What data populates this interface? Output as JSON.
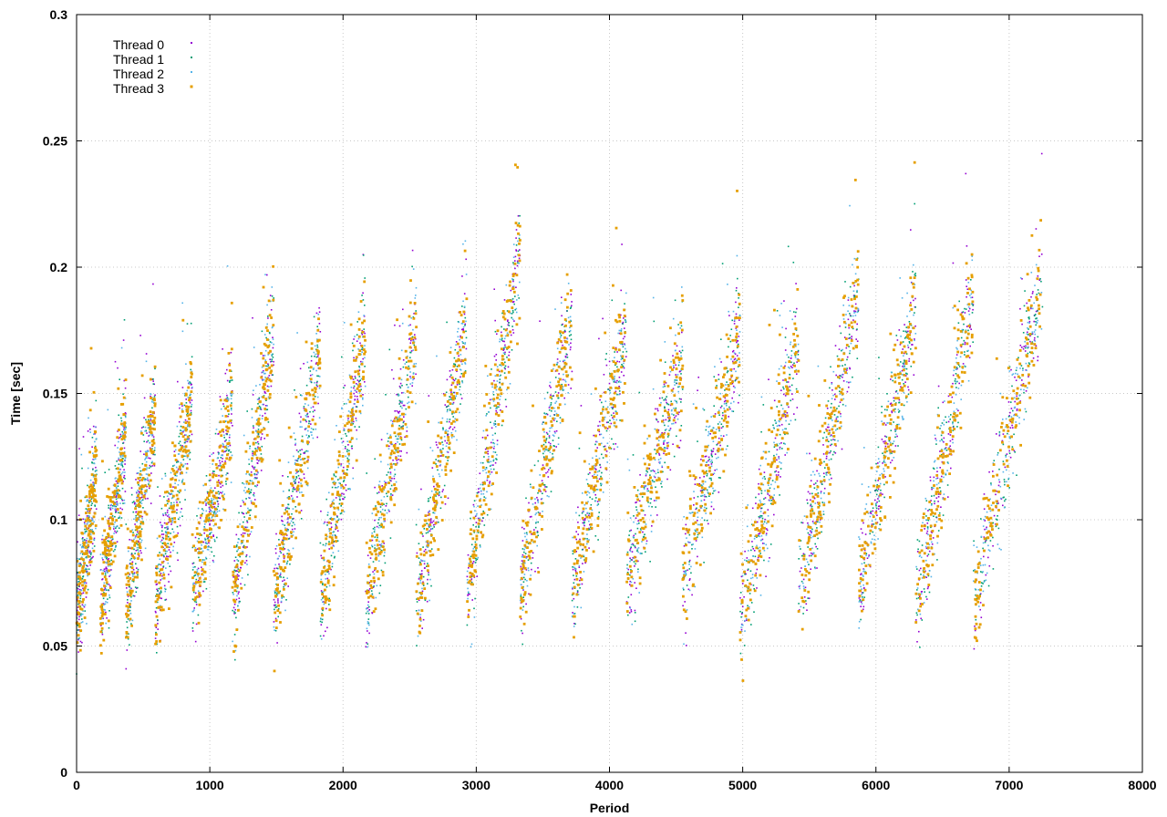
{
  "chart_data": {
    "type": "scatter",
    "title": "",
    "xlabel": "Period",
    "ylabel": "Time [sec]",
    "xlim": [
      0,
      8000
    ],
    "ylim": [
      0,
      0.3
    ],
    "x_ticks": [
      0,
      1000,
      2000,
      3000,
      4000,
      5000,
      6000,
      7000,
      8000
    ],
    "y_ticks": [
      0,
      0.05,
      0.1,
      0.15,
      0.2,
      0.25,
      0.3
    ],
    "x_tick_labels": [
      "0",
      "1000",
      "2000",
      "3000",
      "4000",
      "5000",
      "6000",
      "7000",
      "8000"
    ],
    "y_tick_labels": [
      "0",
      "0.05",
      "0.1",
      "0.15",
      "0.2",
      "0.25",
      "0.3"
    ],
    "grid": true,
    "legend_position": "top-left",
    "series": [
      {
        "name": "Thread 0",
        "color": "#9400d3",
        "marker": "dot"
      },
      {
        "name": "Thread 1",
        "color": "#009e73",
        "marker": "dot"
      },
      {
        "name": "Thread 2",
        "color": "#56b4e9",
        "marker": "dot"
      },
      {
        "name": "Thread 3",
        "color": "#e69f00",
        "marker": "dot"
      }
    ],
    "cycles": [
      {
        "x_start": 0,
        "x_end": 150,
        "y_start": 0.06,
        "y_end": 0.12
      },
      {
        "x_start": 180,
        "x_end": 370,
        "y_start": 0.065,
        "y_end": 0.135
      },
      {
        "x_start": 370,
        "x_end": 590,
        "y_start": 0.065,
        "y_end": 0.145
      },
      {
        "x_start": 590,
        "x_end": 870,
        "y_start": 0.065,
        "y_end": 0.15
      },
      {
        "x_start": 870,
        "x_end": 1170,
        "y_start": 0.07,
        "y_end": 0.145
      },
      {
        "x_start": 1170,
        "x_end": 1480,
        "y_start": 0.065,
        "y_end": 0.175
      },
      {
        "x_start": 1480,
        "x_end": 1830,
        "y_start": 0.065,
        "y_end": 0.165
      },
      {
        "x_start": 1830,
        "x_end": 2170,
        "y_start": 0.065,
        "y_end": 0.175
      },
      {
        "x_start": 2170,
        "x_end": 2550,
        "y_start": 0.065,
        "y_end": 0.175
      },
      {
        "x_start": 2550,
        "x_end": 2930,
        "y_start": 0.065,
        "y_end": 0.18
      },
      {
        "x_start": 2930,
        "x_end": 3330,
        "y_start": 0.07,
        "y_end": 0.205
      },
      {
        "x_start": 3330,
        "x_end": 3720,
        "y_start": 0.07,
        "y_end": 0.18
      },
      {
        "x_start": 3720,
        "x_end": 4130,
        "y_start": 0.07,
        "y_end": 0.175
      },
      {
        "x_start": 4130,
        "x_end": 4550,
        "y_start": 0.075,
        "y_end": 0.165
      },
      {
        "x_start": 4550,
        "x_end": 4980,
        "y_start": 0.075,
        "y_end": 0.175
      },
      {
        "x_start": 4980,
        "x_end": 5420,
        "y_start": 0.06,
        "y_end": 0.17
      },
      {
        "x_start": 5420,
        "x_end": 5870,
        "y_start": 0.07,
        "y_end": 0.19
      },
      {
        "x_start": 5870,
        "x_end": 6300,
        "y_start": 0.07,
        "y_end": 0.185
      },
      {
        "x_start": 6300,
        "x_end": 6730,
        "y_start": 0.065,
        "y_end": 0.19
      },
      {
        "x_start": 6730,
        "x_end": 7250,
        "y_start": 0.065,
        "y_end": 0.195
      }
    ]
  }
}
